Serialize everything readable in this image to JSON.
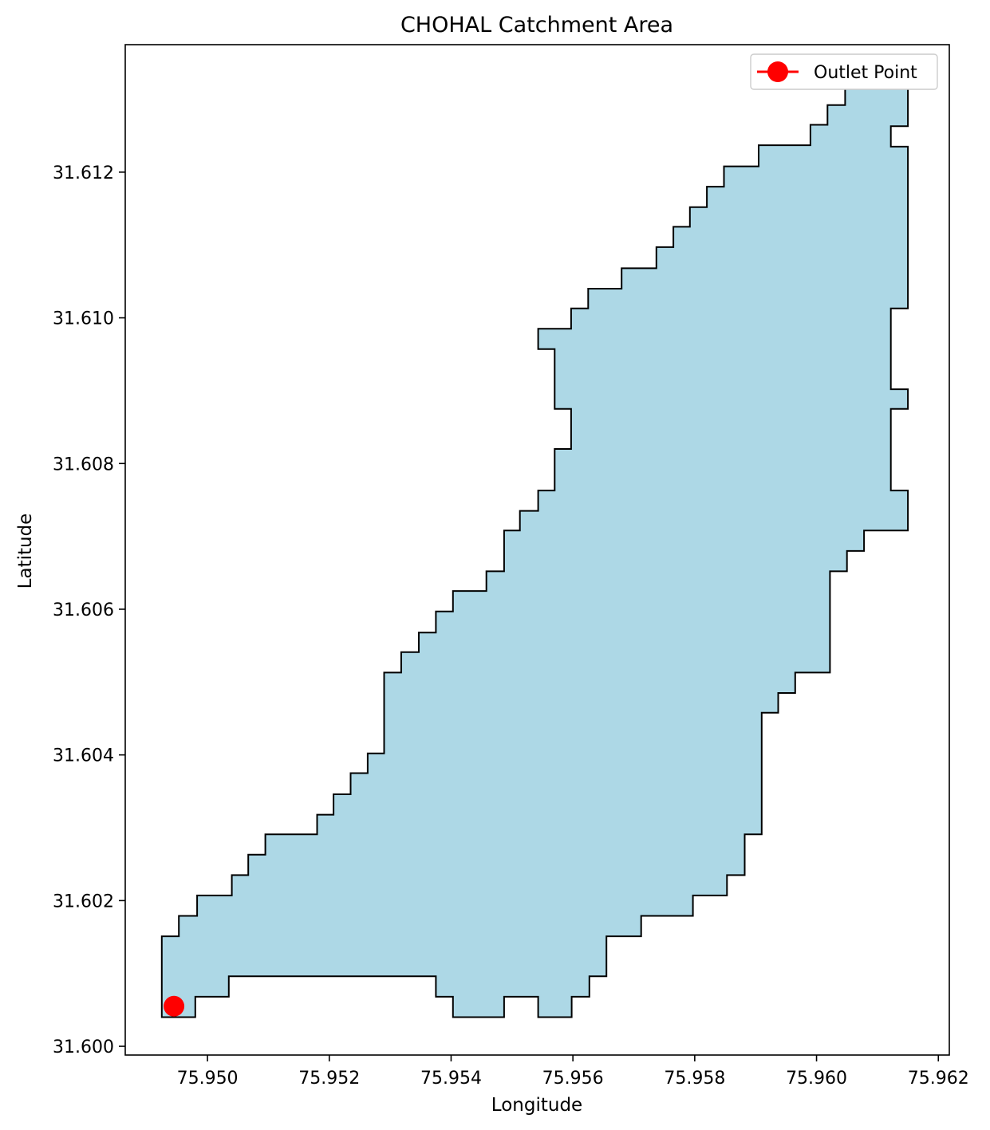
{
  "chart_data": {
    "type": "map",
    "title": "CHOHAL Catchment Area",
    "xlabel": "Longitude",
    "ylabel": "Latitude",
    "xlim": [
      75.94865,
      75.96218
    ],
    "ylim": [
      31.59988,
      31.61375
    ],
    "x_ticks": [
      75.95,
      75.952,
      75.954,
      75.956,
      75.958,
      75.96,
      75.962
    ],
    "x_tick_labels": [
      "75.950",
      "75.952",
      "75.954",
      "75.956",
      "75.958",
      "75.960",
      "75.962"
    ],
    "y_ticks": [
      31.6,
      31.602,
      31.604,
      31.606,
      31.608,
      31.61,
      31.612
    ],
    "y_tick_labels": [
      "31.600",
      "31.602",
      "31.604",
      "31.606",
      "31.608",
      "31.610",
      "31.612"
    ],
    "grid": false,
    "legend": {
      "position": "top-right",
      "entries": [
        {
          "label": "Outlet Point",
          "marker": "circle",
          "color": "#ff0000"
        }
      ]
    },
    "fill_color": "#add8e6",
    "edge_color": "#000000",
    "outlet_point": {
      "lon": 75.94945,
      "lat": 31.60055,
      "color": "#ff0000"
    },
    "catchment_boundary": [
      [
        75.94925,
        31.6004
      ],
      [
        75.9498,
        31.6004
      ],
      [
        75.9498,
        31.60068
      ],
      [
        75.95035,
        31.60068
      ],
      [
        75.95035,
        31.60096
      ],
      [
        75.95375,
        31.60096
      ],
      [
        75.95375,
        31.60068
      ],
      [
        75.95403,
        31.60068
      ],
      [
        75.95403,
        31.6004
      ],
      [
        75.95487,
        31.6004
      ],
      [
        75.95487,
        31.60068
      ],
      [
        75.95543,
        31.60068
      ],
      [
        75.95543,
        31.6004
      ],
      [
        75.95598,
        31.6004
      ],
      [
        75.95598,
        31.60068
      ],
      [
        75.95627,
        31.60068
      ],
      [
        75.95627,
        31.60096
      ],
      [
        75.95655,
        31.60096
      ],
      [
        75.95655,
        31.60151
      ],
      [
        75.95712,
        31.60151
      ],
      [
        75.95712,
        31.60179
      ],
      [
        75.95797,
        31.60179
      ],
      [
        75.95797,
        31.60207
      ],
      [
        75.95853,
        31.60207
      ],
      [
        75.95853,
        31.60235
      ],
      [
        75.95882,
        31.60235
      ],
      [
        75.95882,
        31.60291
      ],
      [
        75.9591,
        31.60291
      ],
      [
        75.9591,
        31.60458
      ],
      [
        75.95937,
        31.60458
      ],
      [
        75.95937,
        31.60485
      ],
      [
        75.95965,
        31.60485
      ],
      [
        75.95965,
        31.60513
      ],
      [
        75.96022,
        31.60513
      ],
      [
        75.96022,
        31.60652
      ],
      [
        75.9605,
        31.60652
      ],
      [
        75.9605,
        31.6068
      ],
      [
        75.96078,
        31.6068
      ],
      [
        75.96078,
        31.60708
      ],
      [
        75.9615,
        31.60708
      ],
      [
        75.9615,
        31.60763
      ],
      [
        75.96122,
        31.60763
      ],
      [
        75.96122,
        31.60875
      ],
      [
        75.9615,
        31.60875
      ],
      [
        75.9615,
        31.60902
      ],
      [
        75.96122,
        31.60902
      ],
      [
        75.96122,
        31.61013
      ],
      [
        75.9615,
        31.61013
      ],
      [
        75.9615,
        31.61235
      ],
      [
        75.96122,
        31.61235
      ],
      [
        75.96122,
        31.61263
      ],
      [
        75.9615,
        31.61263
      ],
      [
        75.9615,
        31.61318
      ],
      [
        75.96047,
        31.61318
      ],
      [
        75.96047,
        31.61292
      ],
      [
        75.96018,
        31.61292
      ],
      [
        75.96018,
        31.61265
      ],
      [
        75.9599,
        31.61265
      ],
      [
        75.9599,
        31.61237
      ],
      [
        75.95905,
        31.61237
      ],
      [
        75.95905,
        31.61208
      ],
      [
        75.95848,
        31.61208
      ],
      [
        75.95848,
        31.6118
      ],
      [
        75.9582,
        31.6118
      ],
      [
        75.9582,
        31.61152
      ],
      [
        75.95792,
        31.61152
      ],
      [
        75.95792,
        31.61125
      ],
      [
        75.95765,
        31.61125
      ],
      [
        75.95765,
        31.61097
      ],
      [
        75.95737,
        31.61097
      ],
      [
        75.95737,
        31.61068
      ],
      [
        75.9568,
        31.61068
      ],
      [
        75.9568,
        31.6104
      ],
      [
        75.95625,
        31.6104
      ],
      [
        75.95625,
        31.61013
      ],
      [
        75.95597,
        31.61013
      ],
      [
        75.95597,
        31.60985
      ],
      [
        75.95543,
        31.60985
      ],
      [
        75.95543,
        31.60957
      ],
      [
        75.9557,
        31.60957
      ],
      [
        75.9557,
        31.60875
      ],
      [
        75.95597,
        31.60875
      ],
      [
        75.95597,
        31.6082
      ],
      [
        75.9557,
        31.6082
      ],
      [
        75.9557,
        31.60763
      ],
      [
        75.95543,
        31.60763
      ],
      [
        75.95543,
        31.60735
      ],
      [
        75.95513,
        31.60735
      ],
      [
        75.95513,
        31.60708
      ],
      [
        75.95487,
        31.60708
      ],
      [
        75.95487,
        31.60652
      ],
      [
        75.95458,
        31.60652
      ],
      [
        75.95458,
        31.60625
      ],
      [
        75.95403,
        31.60625
      ],
      [
        75.95403,
        31.60597
      ],
      [
        75.95375,
        31.60597
      ],
      [
        75.95375,
        31.60568
      ],
      [
        75.95347,
        31.60568
      ],
      [
        75.95347,
        31.60541
      ],
      [
        75.95318,
        31.60541
      ],
      [
        75.95318,
        31.60513
      ],
      [
        75.9529,
        31.60513
      ],
      [
        75.9529,
        31.60402
      ],
      [
        75.95263,
        31.60402
      ],
      [
        75.95263,
        31.60375
      ],
      [
        75.95235,
        31.60375
      ],
      [
        75.95235,
        31.60346
      ],
      [
        75.95207,
        31.60346
      ],
      [
        75.95207,
        31.60318
      ],
      [
        75.9518,
        31.60318
      ],
      [
        75.9518,
        31.60291
      ],
      [
        75.95095,
        31.60291
      ],
      [
        75.95095,
        31.60263
      ],
      [
        75.95067,
        31.60263
      ],
      [
        75.95067,
        31.60235
      ],
      [
        75.9504,
        31.60235
      ],
      [
        75.9504,
        31.60207
      ],
      [
        75.94983,
        31.60207
      ],
      [
        75.94983,
        31.60179
      ],
      [
        75.94953,
        31.60179
      ],
      [
        75.94953,
        31.60151
      ],
      [
        75.94925,
        31.60151
      ]
    ]
  }
}
